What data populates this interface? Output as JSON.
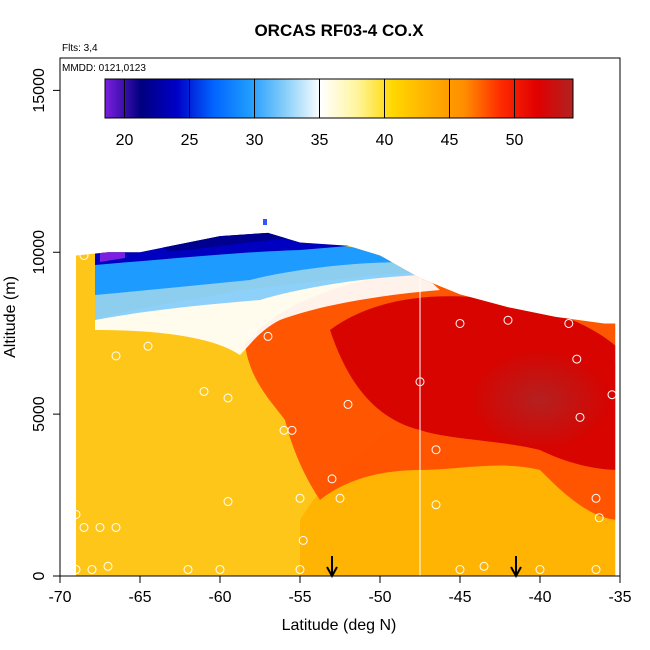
{
  "chart_data": {
    "type": "heatmap",
    "title": "ORCAS RF03-4 CO.X",
    "annotations": [
      "Flts: 3,4",
      "MMDD: 0121,0123"
    ],
    "xlabel": "Latitude (deg N)",
    "ylabel": "Altitude (m)",
    "xlim": [
      -70,
      -35
    ],
    "ylim": [
      0,
      16000
    ],
    "x_ticks": [
      -70,
      -65,
      -60,
      -55,
      -50,
      -45,
      -40,
      -35
    ],
    "x_tick_labels": [
      "-70",
      "-65",
      "-60",
      "-55",
      "-50",
      "-45",
      "-40",
      "-35"
    ],
    "y_ticks": [
      0,
      5000,
      10000,
      15000
    ],
    "y_tick_labels": [
      "0",
      "5000",
      "10000",
      "15000"
    ],
    "colorbar": {
      "range": [
        18.5,
        54.5
      ],
      "ticks": [
        20,
        25,
        30,
        35,
        40,
        45,
        50
      ],
      "tick_labels": [
        "20",
        "25",
        "30",
        "35",
        "40",
        "45",
        "50"
      ],
      "colors": [
        "#7b1fe0",
        "#000080",
        "#0000c8",
        "#0064ff",
        "#1e9bff",
        "#87cefa",
        "#ffffff",
        "#fff59d",
        "#ffd700",
        "#ffb000",
        "#ff8c00",
        "#ff2a00",
        "#e00000",
        "#b22222"
      ],
      "placement": "top"
    },
    "vertical_line_x": -47.5,
    "arrow_x": [
      -53,
      -41.5
    ],
    "profile_top_envelope": [
      [
        -69,
        9900
      ],
      [
        -67,
        10000
      ],
      [
        -65,
        10000
      ],
      [
        -63,
        10200
      ],
      [
        -60,
        10500
      ],
      [
        -57,
        10600
      ],
      [
        -55,
        10300
      ],
      [
        -52,
        10200
      ],
      [
        -50,
        9900
      ],
      [
        -47.5,
        9200
      ],
      [
        -45,
        8700
      ],
      [
        -42,
        8300
      ],
      [
        -39,
        8000
      ],
      [
        -36,
        7800
      ],
      [
        -35.3,
        7800
      ]
    ],
    "profile_bottom": 0,
    "regions": [
      {
        "name": "upper-west",
        "x": [
          -69,
          -57
        ],
        "z": [
          8000,
          10500
        ],
        "value": 25
      },
      {
        "name": "upper-east",
        "x": [
          -57,
          -48
        ],
        "z": [
          8500,
          10000
        ],
        "value": 34
      },
      {
        "name": "mid-east",
        "x": [
          -50,
          -36
        ],
        "z": [
          3000,
          8000
        ],
        "value": 51
      },
      {
        "name": "lower",
        "x": [
          -69,
          -36
        ],
        "z": [
          0,
          3000
        ],
        "value": 45
      }
    ],
    "sample_points": [
      [
        -68.5,
        9900
      ],
      [
        -66.5,
        6800
      ],
      [
        -64.5,
        7100
      ],
      [
        -61,
        5700
      ],
      [
        -59.5,
        5500
      ],
      [
        -58,
        7500
      ],
      [
        -57,
        7400
      ],
      [
        -56,
        4500
      ],
      [
        -55.5,
        4500
      ],
      [
        -52,
        5300
      ],
      [
        -53,
        3000
      ],
      [
        -52.5,
        2400
      ],
      [
        -55,
        2400
      ],
      [
        -54.8,
        1100
      ],
      [
        -59.5,
        2300
      ],
      [
        -69,
        1900
      ],
      [
        -68.5,
        1500
      ],
      [
        -67.5,
        1500
      ],
      [
        -66.5,
        1500
      ],
      [
        -69,
        200
      ],
      [
        -68,
        200
      ],
      [
        -67,
        300
      ],
      [
        -62,
        200
      ],
      [
        -60,
        200
      ],
      [
        -55,
        200
      ],
      [
        -47.5,
        6000
      ],
      [
        -45,
        7800
      ],
      [
        -42,
        7900
      ],
      [
        -38.2,
        7800
      ],
      [
        -37.7,
        6700
      ],
      [
        -37.5,
        4900
      ],
      [
        -35.5,
        5600
      ],
      [
        -46.5,
        3900
      ],
      [
        -46.5,
        2200
      ],
      [
        -43.5,
        300
      ],
      [
        -40,
        200
      ],
      [
        -36.5,
        2400
      ],
      [
        -36.3,
        1800
      ],
      [
        -36.5,
        200
      ],
      [
        -45,
        200
      ]
    ]
  }
}
